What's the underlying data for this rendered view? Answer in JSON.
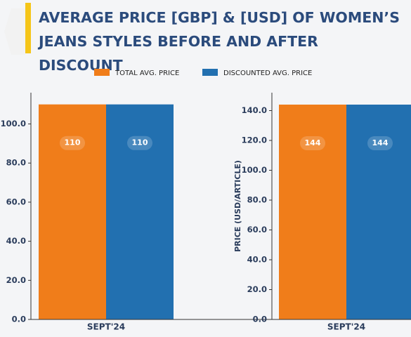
{
  "title": "AVERAGE PRICE [GBP] & [USD] OF WOMEN’S JEANS STYLES BEFORE AND AFTER DISCOUNT",
  "chart_data": [
    {
      "type": "bar",
      "categories": [
        "SEPT'24"
      ],
      "series": [
        {
          "name": "TOTAL AVG. PRICE",
          "color": "#f07d1a",
          "values": [
            110
          ]
        },
        {
          "name": "DISCOUNTED AVG. PRICE",
          "color": "#2270b0",
          "values": [
            110
          ]
        }
      ],
      "ylim": [
        0,
        116
      ],
      "yticks": [
        {
          "value": 0,
          "label": "0.0"
        },
        {
          "value": 20,
          "label": "20.0"
        },
        {
          "value": 40,
          "label": "40.0"
        },
        {
          "value": 60,
          "label": "60.0"
        },
        {
          "value": 80,
          "label": "80.0"
        },
        {
          "value": 100,
          "label": "100.0"
        }
      ]
    },
    {
      "type": "bar",
      "categories": [
        "SEPT'24"
      ],
      "y_label": "PRICE (USD/ARTICLE)",
      "series": [
        {
          "name": "TOTAL AVG. PRICE",
          "color": "#f07d1a",
          "values": [
            144
          ]
        },
        {
          "name": "DISCOUNTED AVG. PRICE",
          "color": "#2270b0",
          "values": [
            144
          ]
        }
      ],
      "ylim": [
        0,
        152
      ],
      "yticks": [
        {
          "value": 0,
          "label": "0.0"
        },
        {
          "value": 20,
          "label": "20.0"
        },
        {
          "value": 40,
          "label": "40.0"
        },
        {
          "value": 60,
          "label": "60.0"
        },
        {
          "value": 80,
          "label": "80.0"
        },
        {
          "value": 100,
          "label": "100.0"
        },
        {
          "value": 120,
          "label": "120.0"
        },
        {
          "value": 140,
          "label": "140.0"
        }
      ]
    }
  ]
}
